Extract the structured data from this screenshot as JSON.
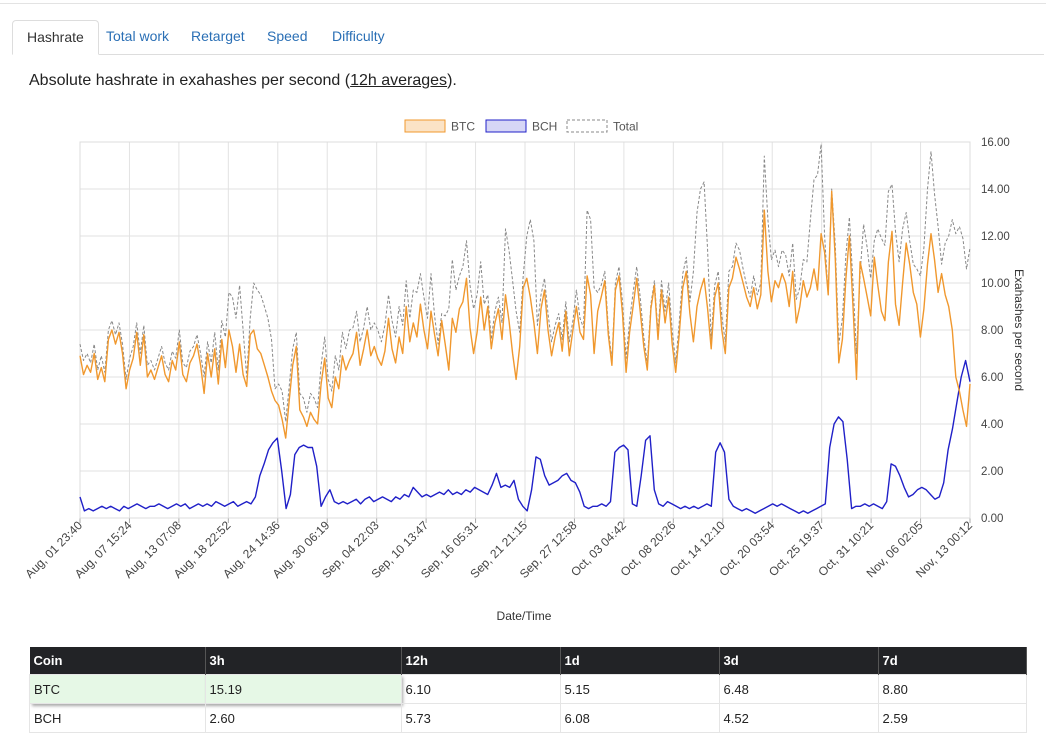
{
  "tabs": [
    {
      "label": "Hashrate",
      "active": true
    },
    {
      "label": "Total work",
      "active": false
    },
    {
      "label": "Retarget",
      "active": false
    },
    {
      "label": "Speed",
      "active": false
    },
    {
      "label": "Difficulty",
      "active": false
    }
  ],
  "subtitle": {
    "prefix": "Absolute hashrate in exahashes per second (",
    "link": "12h averages",
    "suffix": ")."
  },
  "colors": {
    "btc": "#f0982e",
    "bch": "#2020c8",
    "total": "#888888",
    "grid": "#e2e2e2"
  },
  "chart_data": {
    "type": "line",
    "title": "",
    "xlabel": "Date/Time",
    "ylabel": "Exahashes per second",
    "ylim": [
      0,
      16
    ],
    "y_ticks": [
      "0.00",
      "2.00",
      "4.00",
      "6.00",
      "8.00",
      "10.00",
      "12.00",
      "14.00",
      "16.00"
    ],
    "x_ticks": [
      "Aug, 01 23:40",
      "Aug, 07 15:24",
      "Aug, 13 07:08",
      "Aug, 18 22:52",
      "Aug, 24 14:36",
      "Aug, 30 06:19",
      "Sep, 04 22:03",
      "Sep, 10 13:47",
      "Sep, 16 05:31",
      "Sep, 21 21:15",
      "Sep, 27 12:58",
      "Oct, 03 04:42",
      "Oct, 08 20:26",
      "Oct, 14 12:10",
      "Oct, 20 03:54",
      "Oct, 25 19:37",
      "Oct, 31 10:21",
      "Nov, 06 02:05",
      "Nov, 13 00:12"
    ],
    "legend": [
      "BTC",
      "BCH",
      "Total"
    ],
    "series": [
      {
        "name": "BTC",
        "values": [
          6.9,
          6.1,
          6.5,
          6.2,
          7.0,
          5.9,
          6.4,
          5.8,
          7.6,
          8.0,
          7.4,
          7.9,
          7.0,
          5.5,
          6.3,
          6.8,
          7.9,
          6.5,
          7.8,
          6.0,
          6.3,
          5.9,
          6.4,
          6.9,
          6.1,
          5.8,
          6.7,
          6.3,
          7.5,
          6.1,
          5.8,
          6.6,
          6.9,
          7.4,
          6.5,
          5.3,
          7.0,
          6.0,
          7.2,
          5.7,
          7.6,
          6.4,
          8.0,
          7.3,
          6.2,
          7.4,
          6.1,
          5.6,
          7.8,
          8.0,
          7.2,
          7.0,
          6.5,
          6.0,
          5.4,
          5.0,
          4.8,
          4.2,
          3.4,
          5.0,
          6.5,
          7.3,
          4.6,
          4.3,
          3.9,
          4.5,
          4.2,
          4.0,
          5.7,
          6.8,
          5.1,
          4.7,
          6.0,
          5.5,
          6.9,
          6.3,
          6.7,
          7.0,
          7.9,
          6.5,
          7.2,
          8.0,
          6.9,
          7.3,
          6.8,
          6.5,
          7.1,
          8.5,
          7.2,
          6.6,
          7.7,
          7.0,
          9.0,
          7.5,
          8.3,
          7.7,
          9.1,
          8.0,
          7.2,
          8.8,
          7.8,
          6.9,
          8.4,
          7.4,
          6.3,
          8.5,
          7.9,
          8.9,
          9.2,
          10.2,
          8.1,
          7.0,
          7.9,
          9.4,
          8.0,
          9.0,
          7.2,
          8.3,
          8.9,
          7.6,
          9.5,
          8.4,
          7.0,
          5.9,
          7.3,
          9.8,
          10.2,
          9.4,
          8.3,
          7.0,
          8.9,
          9.7,
          8.0,
          6.9,
          7.7,
          8.3,
          7.1,
          8.8,
          6.9,
          8.0,
          9.0,
          7.9,
          7.6,
          10.3,
          9.5,
          7.0,
          8.8,
          9.4,
          10.1,
          7.8,
          6.5,
          9.7,
          10.3,
          8.7,
          6.2,
          7.9,
          9.0,
          10.2,
          8.8,
          7.3,
          6.3,
          8.9,
          9.9,
          7.6,
          9.7,
          8.3,
          9.4,
          7.4,
          6.2,
          7.8,
          9.8,
          10.5,
          8.7,
          7.5,
          9.0,
          9.7,
          10.2,
          8.9,
          7.2,
          9.4,
          10.0,
          8.0,
          7.0,
          9.8,
          10.2,
          11.1,
          10.6,
          10.0,
          9.4,
          9.0,
          9.8,
          8.9,
          9.5,
          13.1,
          10.5,
          9.2,
          10.1,
          9.8,
          10.4,
          10.0,
          9.0,
          10.5,
          8.3,
          9.0,
          10.1,
          9.4,
          9.8,
          10.6,
          9.7,
          12.1,
          11.3,
          9.5,
          13.9,
          11.0,
          6.6,
          7.6,
          10.2,
          12.0,
          9.0,
          5.9,
          10.9,
          10.2,
          9.4,
          8.6,
          11.1,
          9.9,
          8.8,
          8.4,
          10.9,
          12.2,
          9.1,
          8.2,
          10.0,
          11.7,
          10.8,
          9.6,
          9.1,
          7.7,
          8.9,
          10.8,
          12.1,
          11.0,
          9.6,
          10.4,
          9.5,
          9.0,
          8.0,
          6.0,
          5.4,
          4.6,
          3.9,
          5.7
        ]
      },
      {
        "name": "BCH",
        "values": [
          0.9,
          0.3,
          0.4,
          0.3,
          0.4,
          0.5,
          0.4,
          0.5,
          0.4,
          0.3,
          0.5,
          0.4,
          0.5,
          0.6,
          0.5,
          0.4,
          0.5,
          0.5,
          0.6,
          0.5,
          0.4,
          0.5,
          0.6,
          0.5,
          0.6,
          0.4,
          0.5,
          0.6,
          0.5,
          0.6,
          0.5,
          0.7,
          0.6,
          0.5,
          0.6,
          0.7,
          0.5,
          0.6,
          0.7,
          0.6,
          0.9,
          1.8,
          2.3,
          2.9,
          3.2,
          3.4,
          2.0,
          0.4,
          1.0,
          2.7,
          3.0,
          3.1,
          3.0,
          3.0,
          2.2,
          0.5,
          0.9,
          1.2,
          0.7,
          0.6,
          0.7,
          0.6,
          0.7,
          0.8,
          0.6,
          0.8,
          0.9,
          0.7,
          0.8,
          0.9,
          0.8,
          0.7,
          0.9,
          0.8,
          1.0,
          0.9,
          1.3,
          1.1,
          0.9,
          1.0,
          0.9,
          1.0,
          1.1,
          1.0,
          1.2,
          1.0,
          1.1,
          1.0,
          1.2,
          1.1,
          1.3,
          1.2,
          1.1,
          1.0,
          1.4,
          1.9,
          1.3,
          1.4,
          1.3,
          1.6,
          0.8,
          0.5,
          0.3,
          1.2,
          2.6,
          2.5,
          1.8,
          1.4,
          1.5,
          1.6,
          1.8,
          1.9,
          1.6,
          1.5,
          1.1,
          0.5,
          0.4,
          0.5,
          0.5,
          0.6,
          0.5,
          0.7,
          2.8,
          3.0,
          3.1,
          2.9,
          0.6,
          0.5,
          1.8,
          3.3,
          3.5,
          1.2,
          0.6,
          0.5,
          0.7,
          0.6,
          0.5,
          0.4,
          0.5,
          0.4,
          0.5,
          0.4,
          0.5,
          0.6,
          0.5,
          2.8,
          3.2,
          2.8,
          0.8,
          0.5,
          0.4,
          0.3,
          0.4,
          0.3,
          0.2,
          0.3,
          0.4,
          0.5,
          0.6,
          0.5,
          0.6,
          0.5,
          0.4,
          0.3,
          0.2,
          0.3,
          0.2,
          0.3,
          0.4,
          0.5,
          0.6,
          3.0,
          4.0,
          4.3,
          4.1,
          2.5,
          0.4,
          0.5,
          0.5,
          0.6,
          0.5,
          0.6,
          0.5,
          0.4,
          0.7,
          2.3,
          2.2,
          1.8,
          1.3,
          0.9,
          1.0,
          1.2,
          1.3,
          1.2,
          1.0,
          0.8,
          0.9,
          1.5,
          2.9,
          3.8,
          4.9,
          6.0,
          6.7,
          5.8
        ]
      },
      {
        "name": "Total",
        "values": [
          7.4,
          6.7,
          7.0,
          6.6,
          7.4,
          6.3,
          6.9,
          6.2,
          8.0,
          8.4,
          7.8,
          8.3,
          7.4,
          5.9,
          6.8,
          7.3,
          8.3,
          7.0,
          8.2,
          6.5,
          6.7,
          6.3,
          6.8,
          7.3,
          6.6,
          6.3,
          7.1,
          6.8,
          8.0,
          6.6,
          6.4,
          7.1,
          7.3,
          7.8,
          7.0,
          6.0,
          7.5,
          6.6,
          7.9,
          6.3,
          8.4,
          7.7,
          9.6,
          9.4,
          8.5,
          9.9,
          8.0,
          6.0,
          8.5,
          10.0,
          9.7,
          9.5,
          9.0,
          8.5,
          7.6,
          5.5,
          5.7,
          5.4,
          4.1,
          5.6,
          7.2,
          7.9,
          5.3,
          5.1,
          4.5,
          5.3,
          5.1,
          4.7,
          6.5,
          7.7,
          5.9,
          5.4,
          6.9,
          6.3,
          7.9,
          7.2,
          8.0,
          8.1,
          8.8,
          7.5,
          8.1,
          9.0,
          8.0,
          8.3,
          8.0,
          7.5,
          8.2,
          9.5,
          8.4,
          7.7,
          9.0,
          8.2,
          10.1,
          8.5,
          9.7,
          9.6,
          10.4,
          9.4,
          8.5,
          10.4,
          8.6,
          7.4,
          8.7,
          8.6,
          8.9,
          11.0,
          9.7,
          10.3,
          10.7,
          11.8,
          9.9,
          8.9,
          9.5,
          10.9,
          9.1,
          9.5,
          7.6,
          8.8,
          9.4,
          8.3,
          12.3,
          11.4,
          10.1,
          8.8,
          7.9,
          10.3,
          12.0,
          12.7,
          11.8,
          8.2,
          9.5,
          10.2,
          8.7,
          7.5,
          8.2,
          8.7,
          7.6,
          9.2,
          7.5,
          8.4,
          9.7,
          8.5,
          8.1,
          13.1,
          12.7,
          9.8,
          9.6,
          9.9,
          10.5,
          8.1,
          6.7,
          10.0,
          10.7,
          9.2,
          6.8,
          8.4,
          9.6,
          10.7,
          9.4,
          7.7,
          6.6,
          9.1,
          10.1,
          7.9,
          10.1,
          8.8,
          10.0,
          8.0,
          6.6,
          8.3,
          10.4,
          11.1,
          9.2,
          10.5,
          13.0,
          14.0,
          14.3,
          11.4,
          7.6,
          9.9,
          10.5,
          8.6,
          7.5,
          10.5,
          10.7,
          11.7,
          11.4,
          10.6,
          9.9,
          9.4,
          10.3,
          9.5,
          10.0,
          15.4,
          12.7,
          11.0,
          11.4,
          10.7,
          11.4,
          11.2,
          10.3,
          11.7,
          9.3,
          9.8,
          11.0,
          10.9,
          12.7,
          14.4,
          14.6,
          15.9,
          12.0,
          9.5,
          14.0,
          11.6,
          7.4,
          8.5,
          11.2,
          12.8,
          10.0,
          7.0,
          10.4,
          12.5,
          11.5,
          10.2,
          11.8,
          12.3,
          11.9,
          11.6,
          13.9,
          14.2,
          12.2,
          10.9,
          12.3,
          13.0,
          11.8,
          10.8,
          10.6,
          10.3,
          11.5,
          14.0,
          15.6,
          13.8,
          12.4,
          10.8,
          11.7,
          12.0,
          12.7,
          12.1,
          12.4,
          11.9,
          10.6,
          11.5
        ]
      }
    ]
  },
  "table": {
    "headers": [
      "Coin",
      "3h",
      "12h",
      "1d",
      "3d",
      "7d"
    ],
    "rows": [
      [
        "BTC",
        "15.19",
        "6.10",
        "5.15",
        "6.48",
        "8.80"
      ],
      [
        "BCH",
        "2.60",
        "5.73",
        "6.08",
        "4.52",
        "2.59"
      ]
    ]
  }
}
